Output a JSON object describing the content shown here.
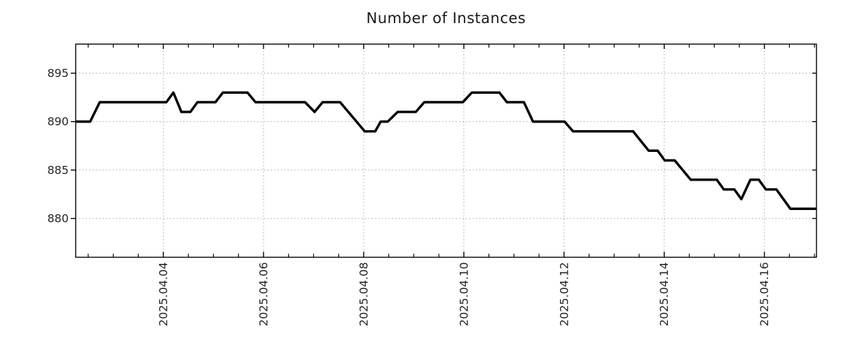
{
  "title": "Number of Instances",
  "chart_data": {
    "type": "line",
    "title": "Number of Instances",
    "x_axis": {
      "unit": "date (day of April 2025)",
      "range_days": [
        2.25,
        17.04
      ],
      "major_ticks": [
        {
          "day": 4,
          "label": "2025.04.04"
        },
        {
          "day": 6,
          "label": "2025.04.06"
        },
        {
          "day": 8,
          "label": "2025.04.08"
        },
        {
          "day": 10,
          "label": "2025.04.10"
        },
        {
          "day": 12,
          "label": "2025.04.12"
        },
        {
          "day": 14,
          "label": "2025.04.14"
        },
        {
          "day": 16,
          "label": "2025.04.16"
        }
      ],
      "minor_tick_step_days": 0.5,
      "label_rotation_deg": 90
    },
    "y_axis": {
      "range": [
        876,
        898
      ],
      "ticks": [
        880,
        885,
        890,
        895
      ]
    },
    "grid": true,
    "legend": false,
    "series": [
      {
        "name": "instances",
        "color": "#000000",
        "points_day_value": [
          [
            2.25,
            890
          ],
          [
            2.54,
            890
          ],
          [
            2.73,
            892
          ],
          [
            4.06,
            892
          ],
          [
            4.2,
            893
          ],
          [
            4.36,
            891
          ],
          [
            4.54,
            891
          ],
          [
            4.68,
            892
          ],
          [
            5.04,
            892
          ],
          [
            5.19,
            893
          ],
          [
            5.68,
            893
          ],
          [
            5.84,
            892
          ],
          [
            6.83,
            892
          ],
          [
            7.02,
            891
          ],
          [
            7.18,
            892
          ],
          [
            7.53,
            892
          ],
          [
            8.02,
            889
          ],
          [
            8.23,
            889
          ],
          [
            8.34,
            890
          ],
          [
            8.48,
            890
          ],
          [
            8.68,
            891
          ],
          [
            9.04,
            891
          ],
          [
            9.21,
            892
          ],
          [
            9.98,
            892
          ],
          [
            10.16,
            893
          ],
          [
            10.71,
            893
          ],
          [
            10.86,
            892
          ],
          [
            11.2,
            892
          ],
          [
            11.38,
            890
          ],
          [
            12.01,
            890
          ],
          [
            12.18,
            889
          ],
          [
            13.38,
            889
          ],
          [
            13.69,
            887
          ],
          [
            13.87,
            887
          ],
          [
            14.01,
            886
          ],
          [
            14.21,
            886
          ],
          [
            14.53,
            884
          ],
          [
            15.05,
            884
          ],
          [
            15.19,
            883
          ],
          [
            15.4,
            883
          ],
          [
            15.54,
            882
          ],
          [
            15.72,
            884
          ],
          [
            15.89,
            884
          ],
          [
            16.03,
            883
          ],
          [
            16.24,
            883
          ],
          [
            16.52,
            881
          ],
          [
            17.04,
            881
          ]
        ]
      }
    ]
  },
  "style": {
    "background": "#ffffff",
    "line_color": "#000000",
    "grid_color": "#a8a8a8",
    "axis_color": "#000000",
    "tick_text_color": "#262626",
    "title_color": "#1a1a1a"
  }
}
